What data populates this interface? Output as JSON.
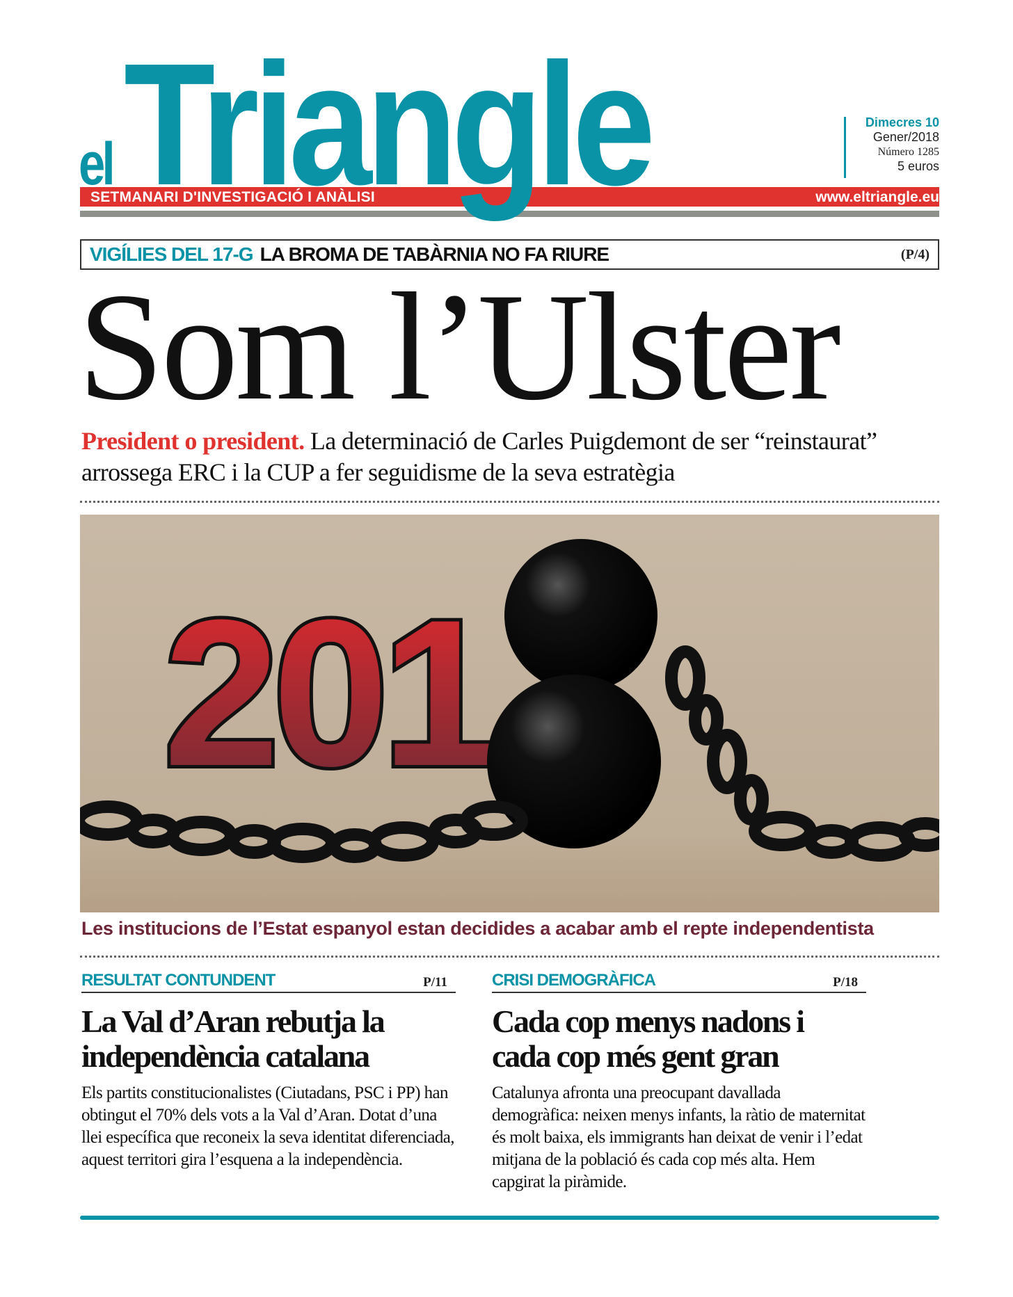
{
  "masthead": {
    "logo_prefix": "el",
    "logo_name": "Triangle",
    "tagline": "SETMANARI D'INVESTIGACIÓ I ANÀLISI",
    "url": "www.eltriangle.eu",
    "date_day": "Dimecres 10",
    "date_month": "Gener/2018",
    "issue": "Número 1285",
    "price": "5 euros",
    "brand_color": "#0a92a6",
    "accent_color": "#e0322e"
  },
  "top_story": {
    "kicker_section": "VIGÍLIES DEL 17-G",
    "kicker_title": "LA BROMA DE TABÀRNIA NO FA RIURE",
    "kicker_page": "(P/4)",
    "headline": "Som l’Ulster",
    "sub_lead": "President o president.",
    "sub_text": "La determinació de Carles Puigdemont de ser “reinstaurat” arrossega ERC i la CUP a fer seguidisme de la seva estratègia",
    "illustration_text": "201",
    "caption": "Les institucions de l’Estat espanyol estan decidides a acabar amb el repte independentista"
  },
  "articles": [
    {
      "section": "RESULTAT CONTUNDENT",
      "page": "P/11",
      "title": "La Val d’Aran rebutja la independència catalana",
      "body": "Els partits constitucionalistes (Ciutadans, PSC i PP) han obtingut el 70% dels vots a la Val d’Aran. Dotat d’una llei específica que reconeix la seva identitat diferenciada, aquest territori gira l’esquena a la independència."
    },
    {
      "section": "CRISI DEMOGRÀFICA",
      "page": "P/18",
      "title": "Cada cop menys nadons i cada cop més gent gran",
      "body": "Catalunya afronta una preocupant davallada demogràfica: neixen menys infants, la ràtio de maternitat és molt baixa, els immigrants han deixat de venir i l’edat mitjana de la població és cada cop més alta.  Hem capgirat la piràmide."
    }
  ]
}
